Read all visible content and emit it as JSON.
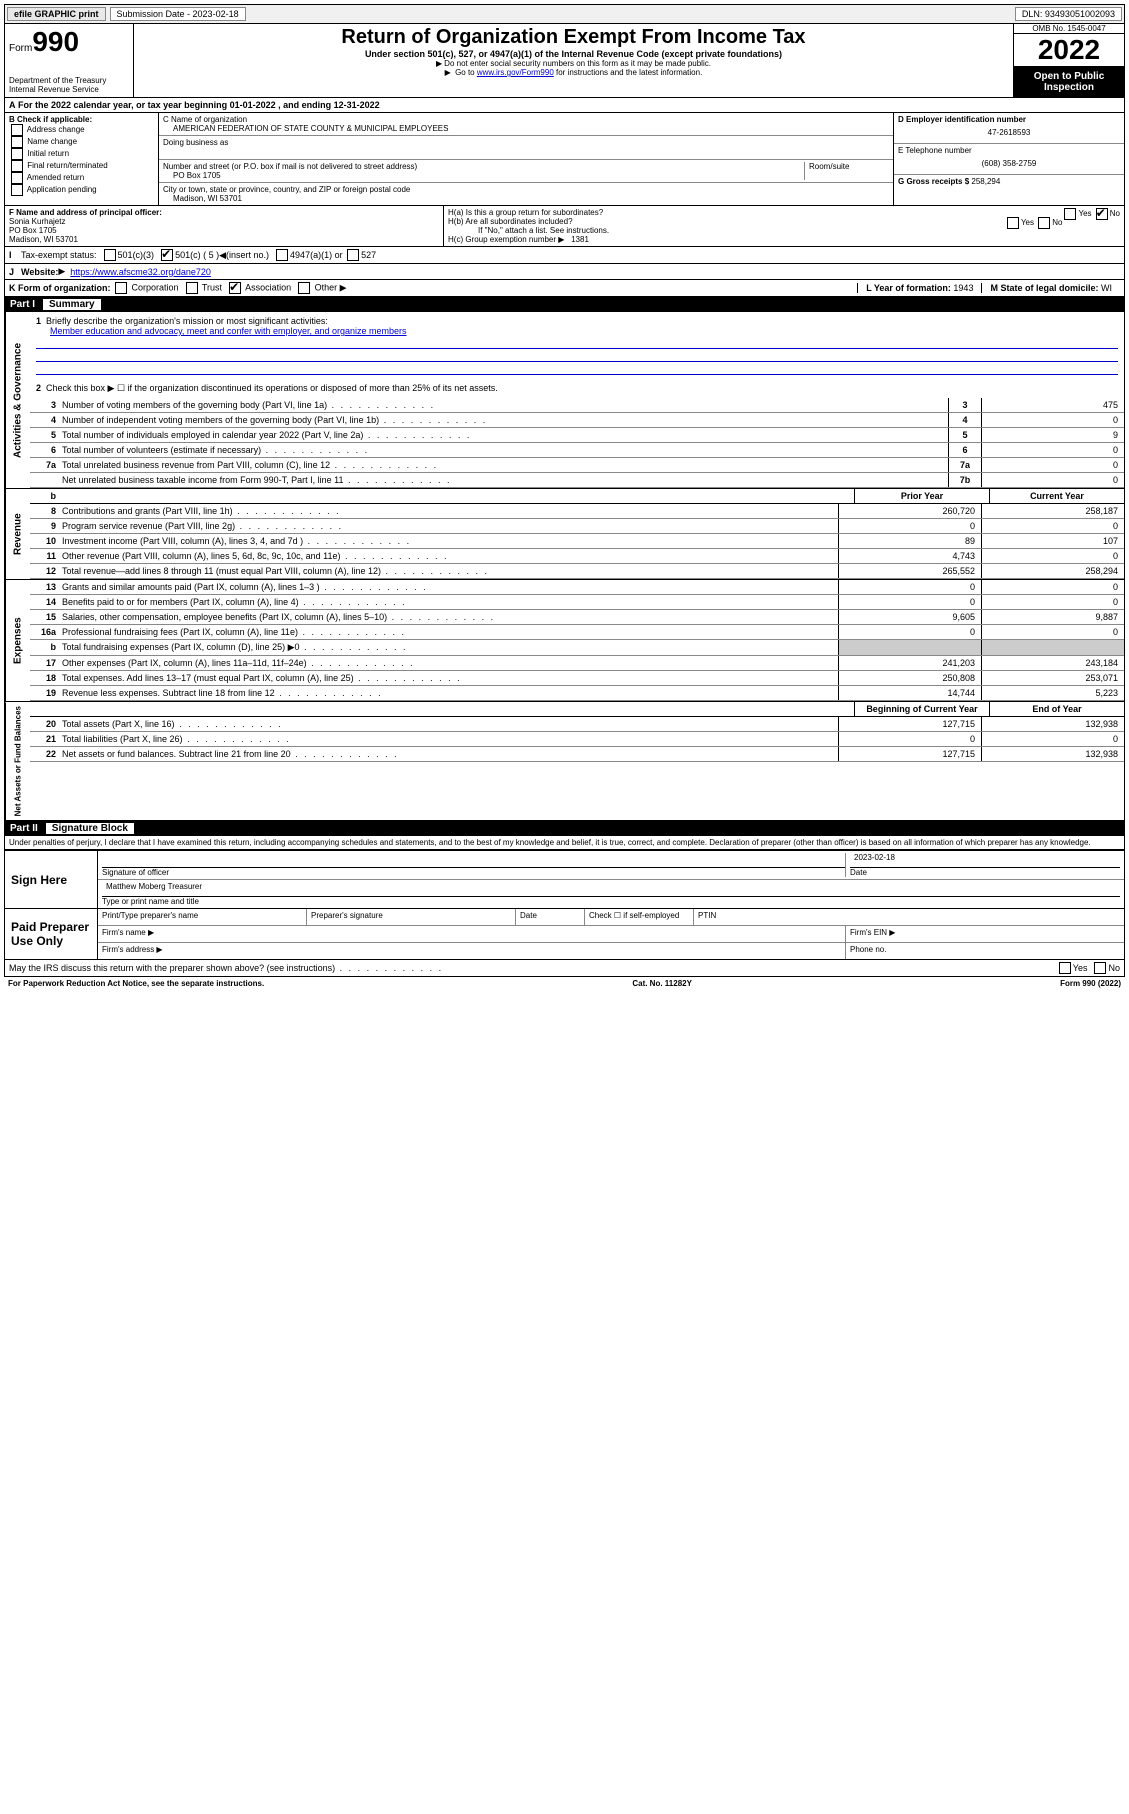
{
  "topbar": {
    "efile_label": "efile GRAPHIC print",
    "submission_label": "Submission Date - 2023-02-18",
    "dln_label": "DLN: 93493051002093"
  },
  "header": {
    "form_label": "Form",
    "form_number": "990",
    "title": "Return of Organization Exempt From Income Tax",
    "subtitle": "Under section 501(c), 527, or 4947(a)(1) of the Internal Revenue Code (except private foundations)",
    "note1": "Do not enter social security numbers on this form as it may be made public.",
    "note2_prefix": "Go to ",
    "note2_link": "www.irs.gov/Form990",
    "note2_suffix": " for instructions and the latest information.",
    "dept": "Department of the Treasury",
    "irs": "Internal Revenue Service",
    "omb": "OMB No. 1545-0047",
    "year": "2022",
    "open_public": "Open to Public Inspection"
  },
  "line_a": "For the 2022 calendar year, or tax year beginning 01-01-2022    , and ending 12-31-2022",
  "section_b": {
    "label": "B Check if applicable:",
    "items": [
      "Address change",
      "Name change",
      "Initial return",
      "Final return/terminated",
      "Amended return",
      "Application pending"
    ]
  },
  "section_c": {
    "name_label": "C Name of organization",
    "name": "AMERICAN FEDERATION OF STATE COUNTY & MUNICIPAL EMPLOYEES",
    "dba_label": "Doing business as",
    "dba": "",
    "addr_label": "Number and street (or P.O. box if mail is not delivered to street address)",
    "room_label": "Room/suite",
    "addr": "PO Box 1705",
    "city_label": "City or town, state or province, country, and ZIP or foreign postal code",
    "city": "Madison, WI  53701"
  },
  "section_d": {
    "ein_label": "D Employer identification number",
    "ein": "47-2618593",
    "phone_label": "E Telephone number",
    "phone": "(608) 358-2759",
    "gross_label": "G Gross receipts $",
    "gross": "258,294"
  },
  "section_f": {
    "label": "F  Name and address of principal officer:",
    "name": "Sonia Kurhajetz",
    "addr1": "PO Box 1705",
    "addr2": "Madison, WI  53701"
  },
  "section_h": {
    "ha_label": "H(a)  Is this a group return for subordinates?",
    "ha_yes": "Yes",
    "ha_no": "No",
    "hb_label": "H(b)  Are all subordinates included?",
    "hb_yes": "Yes",
    "hb_no": "No",
    "hb_note": "If \"No,\" attach a list. See instructions.",
    "hc_label": "H(c)  Group exemption number",
    "hc_value": "1381"
  },
  "line_i": {
    "label": "Tax-exempt status:",
    "opt1": "501(c)(3)",
    "opt2": "501(c) ( 5 )",
    "opt2_note": "(insert no.)",
    "opt3": "4947(a)(1) or",
    "opt4": "527"
  },
  "line_j": {
    "label": "Website:",
    "url": "https://www.afscme32.org/dane720"
  },
  "line_k": {
    "label": "K Form of organization:",
    "opts": [
      "Corporation",
      "Trust",
      "Association",
      "Other"
    ],
    "checked_index": 2
  },
  "line_l": {
    "label": "L Year of formation:",
    "value": "1943"
  },
  "line_m": {
    "label": "M State of legal domicile:",
    "value": "WI"
  },
  "part1": {
    "header": "Part I",
    "title": "Summary",
    "side_labels": [
      "Activities & Governance",
      "Revenue",
      "Expenses",
      "Net Assets or Fund Balances"
    ],
    "line1_label": "Briefly describe the organization's mission or most significant activities:",
    "line1_text": "Member education and advocacy, meet and confer with employer, and organize members",
    "line2": "Check this box ▶ ☐  if the organization discontinued its operations or disposed of more than 25% of its net assets.",
    "rows_gov": [
      {
        "num": "3",
        "desc": "Number of voting members of the governing body (Part VI, line 1a)",
        "box": "3",
        "val": "475"
      },
      {
        "num": "4",
        "desc": "Number of independent voting members of the governing body (Part VI, line 1b)",
        "box": "4",
        "val": "0"
      },
      {
        "num": "5",
        "desc": "Total number of individuals employed in calendar year 2022 (Part V, line 2a)",
        "box": "5",
        "val": "9"
      },
      {
        "num": "6",
        "desc": "Total number of volunteers (estimate if necessary)",
        "box": "6",
        "val": "0"
      },
      {
        "num": "7a",
        "desc": "Total unrelated business revenue from Part VIII, column (C), line 12",
        "box": "7a",
        "val": "0"
      },
      {
        "num": "",
        "desc": "Net unrelated business taxable income from Form 990-T, Part I, line 11",
        "box": "7b",
        "val": "0"
      }
    ],
    "col_headers": {
      "b": "b",
      "prior": "Prior Year",
      "current": "Current Year"
    },
    "rows_rev": [
      {
        "num": "8",
        "desc": "Contributions and grants (Part VIII, line 1h)",
        "prior": "260,720",
        "current": "258,187"
      },
      {
        "num": "9",
        "desc": "Program service revenue (Part VIII, line 2g)",
        "prior": "0",
        "current": "0"
      },
      {
        "num": "10",
        "desc": "Investment income (Part VIII, column (A), lines 3, 4, and 7d )",
        "prior": "89",
        "current": "107"
      },
      {
        "num": "11",
        "desc": "Other revenue (Part VIII, column (A), lines 5, 6d, 8c, 9c, 10c, and 11e)",
        "prior": "4,743",
        "current": "0"
      },
      {
        "num": "12",
        "desc": "Total revenue—add lines 8 through 11 (must equal Part VIII, column (A), line 12)",
        "prior": "265,552",
        "current": "258,294"
      }
    ],
    "rows_exp": [
      {
        "num": "13",
        "desc": "Grants and similar amounts paid (Part IX, column (A), lines 1–3 )",
        "prior": "0",
        "current": "0"
      },
      {
        "num": "14",
        "desc": "Benefits paid to or for members (Part IX, column (A), line 4)",
        "prior": "0",
        "current": "0"
      },
      {
        "num": "15",
        "desc": "Salaries, other compensation, employee benefits (Part IX, column (A), lines 5–10)",
        "prior": "9,605",
        "current": "9,887"
      },
      {
        "num": "16a",
        "desc": "Professional fundraising fees (Part IX, column (A), line 11e)",
        "prior": "0",
        "current": "0"
      },
      {
        "num": "b",
        "desc": "Total fundraising expenses (Part IX, column (D), line 25) ▶0",
        "prior": "",
        "current": ""
      },
      {
        "num": "17",
        "desc": "Other expenses (Part IX, column (A), lines 11a–11d, 11f–24e)",
        "prior": "241,203",
        "current": "243,184"
      },
      {
        "num": "18",
        "desc": "Total expenses. Add lines 13–17 (must equal Part IX, column (A), line 25)",
        "prior": "250,808",
        "current": "253,071"
      },
      {
        "num": "19",
        "desc": "Revenue less expenses. Subtract line 18 from line 12",
        "prior": "14,744",
        "current": "5,223"
      }
    ],
    "col_headers2": {
      "begin": "Beginning of Current Year",
      "end": "End of Year"
    },
    "rows_net": [
      {
        "num": "20",
        "desc": "Total assets (Part X, line 16)",
        "prior": "127,715",
        "current": "132,938"
      },
      {
        "num": "21",
        "desc": "Total liabilities (Part X, line 26)",
        "prior": "0",
        "current": "0"
      },
      {
        "num": "22",
        "desc": "Net assets or fund balances. Subtract line 21 from line 20",
        "prior": "127,715",
        "current": "132,938"
      }
    ]
  },
  "part2": {
    "header": "Part II",
    "title": "Signature Block",
    "declaration": "Under penalties of perjury, I declare that I have examined this return, including accompanying schedules and statements, and to the best of my knowledge and belief, it is true, correct, and complete. Declaration of preparer (other than officer) is based on all information of which preparer has any knowledge."
  },
  "sign_here": {
    "label": "Sign Here",
    "sig_label": "Signature of officer",
    "date_label": "Date",
    "date": "2023-02-18",
    "name": "Matthew Moberg Treasurer",
    "name_label": "Type or print name and title"
  },
  "paid_preparer": {
    "label": "Paid Preparer Use Only",
    "headers": [
      "Print/Type preparer's name",
      "Preparer's signature",
      "Date",
      "Check ☐ if self-employed",
      "PTIN"
    ],
    "firm_name_label": "Firm's name  ▶",
    "firm_ein_label": "Firm's EIN ▶",
    "firm_addr_label": "Firm's address ▶",
    "phone_label": "Phone no."
  },
  "discuss": {
    "text": "May the IRS discuss this return with the preparer shown above? (see instructions)",
    "yes": "Yes",
    "no": "No"
  },
  "footer": {
    "left": "For Paperwork Reduction Act Notice, see the separate instructions.",
    "mid": "Cat. No. 11282Y",
    "right": "Form 990 (2022)"
  }
}
